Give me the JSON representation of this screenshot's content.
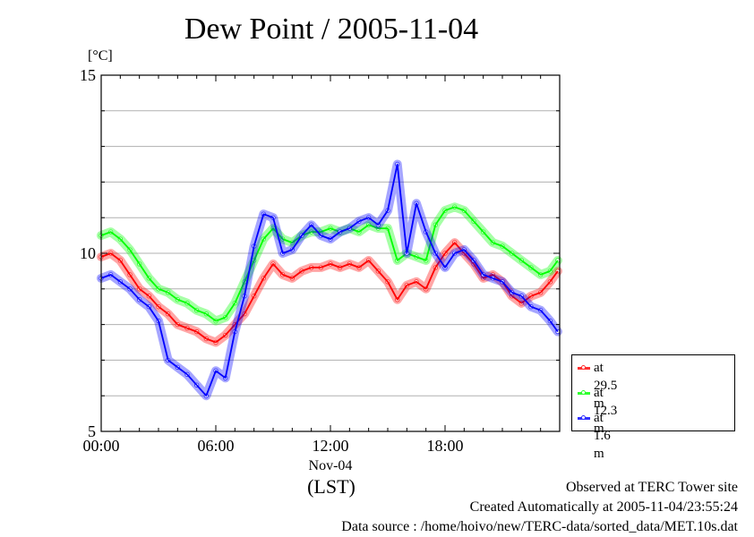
{
  "title": "Dew Point / 2005-11-04",
  "unit_label": "[°C]",
  "footer": {
    "line1": "Observed at TERC Tower site",
    "line2": "Created Automatically at 2005-11-04/23:55:24",
    "line3": "Data source : /home/hoivo/new/TERC-data/sorted_data/MET.10s.dat"
  },
  "chart_data": {
    "type": "line",
    "title": "Dew Point / 2005-11-04",
    "xlabel": "(LST)",
    "ylabel": "[°C]",
    "xlim": [
      0,
      24
    ],
    "ylim": [
      5,
      15
    ],
    "y_ticks": [
      "5",
      "10",
      "15"
    ],
    "x_ticks": [
      {
        "hour": 0,
        "label": "00:00",
        "sublabel": ""
      },
      {
        "hour": 6,
        "label": "06:00",
        "sublabel": ""
      },
      {
        "hour": 12,
        "label": "12:00",
        "sublabel": "Nov-04"
      },
      {
        "hour": 18,
        "label": "18:00",
        "sublabel": ""
      }
    ],
    "grid": true,
    "legend_position": "right-bottom",
    "x_hours": [
      0,
      0.5,
      1,
      1.5,
      2,
      2.5,
      3,
      3.5,
      4,
      4.5,
      5,
      5.5,
      6,
      6.5,
      7,
      7.5,
      8,
      8.5,
      9,
      9.5,
      10,
      10.5,
      11,
      11.5,
      12,
      12.5,
      13,
      13.5,
      14,
      14.5,
      15,
      15.5,
      16,
      16.5,
      17,
      17.5,
      18,
      18.5,
      19,
      19.5,
      20,
      20.5,
      21,
      21.5,
      22,
      22.5,
      23,
      23.5,
      23.9
    ],
    "series": [
      {
        "name": "at 29.5 m",
        "color": "#ff0000",
        "values": [
          9.9,
          10.0,
          9.8,
          9.4,
          9.0,
          8.8,
          8.5,
          8.3,
          8.0,
          7.9,
          7.8,
          7.6,
          7.5,
          7.7,
          8.0,
          8.3,
          8.8,
          9.3,
          9.7,
          9.4,
          9.3,
          9.5,
          9.6,
          9.6,
          9.7,
          9.6,
          9.7,
          9.6,
          9.8,
          9.5,
          9.2,
          8.7,
          9.1,
          9.2,
          9.0,
          9.6,
          10.0,
          10.3,
          10.0,
          9.7,
          9.3,
          9.4,
          9.2,
          8.8,
          8.6,
          8.8,
          8.9,
          9.2,
          9.5
        ]
      },
      {
        "name": "at 12.3 m",
        "color": "#00ff00",
        "values": [
          10.5,
          10.6,
          10.4,
          10.1,
          9.7,
          9.3,
          9.0,
          8.9,
          8.7,
          8.6,
          8.4,
          8.3,
          8.1,
          8.2,
          8.6,
          9.2,
          9.8,
          10.4,
          10.7,
          10.4,
          10.3,
          10.5,
          10.6,
          10.6,
          10.7,
          10.6,
          10.7,
          10.6,
          10.8,
          10.7,
          10.7,
          9.8,
          10.0,
          9.9,
          9.8,
          10.8,
          11.2,
          11.3,
          11.2,
          10.9,
          10.6,
          10.3,
          10.2,
          10.0,
          9.8,
          9.6,
          9.4,
          9.5,
          9.8
        ]
      },
      {
        "name": "at 1.6 m",
        "color": "#0000ff",
        "values": [
          9.3,
          9.4,
          9.2,
          9.0,
          8.7,
          8.5,
          8.1,
          7.0,
          6.8,
          6.6,
          6.3,
          6.0,
          6.7,
          6.5,
          7.8,
          8.8,
          10.2,
          11.1,
          11.0,
          10.0,
          10.1,
          10.5,
          10.8,
          10.5,
          10.4,
          10.6,
          10.7,
          10.9,
          11.0,
          10.8,
          11.2,
          12.5,
          10.0,
          11.4,
          10.6,
          10.0,
          9.6,
          10.0,
          10.1,
          9.8,
          9.4,
          9.3,
          9.2,
          8.9,
          8.8,
          8.5,
          8.4,
          8.1,
          7.8
        ]
      }
    ]
  }
}
